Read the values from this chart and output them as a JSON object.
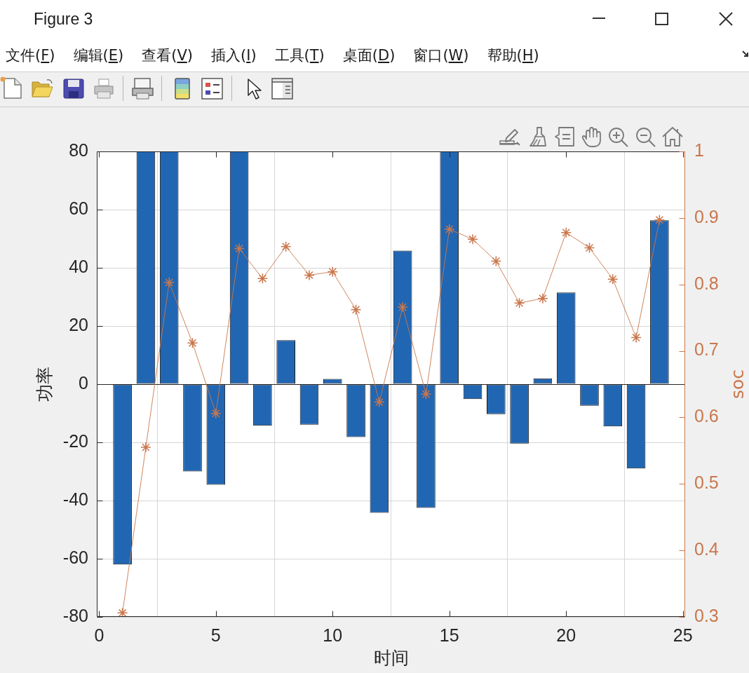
{
  "chart_data": {
    "type": "bar",
    "title": "Figure 3",
    "annotations": [
      "文件(F)",
      "编辑(E)",
      "查看(V)",
      "插入(I)",
      "工具(T)",
      "桌面(D)",
      "窗口(W)",
      "帮助(H)"
    ],
    "xlabel": "时间",
    "ylabel": "功率",
    "y2label": "soc",
    "x": [
      1,
      2,
      3,
      4,
      5,
      6,
      7,
      8,
      9,
      10,
      11,
      12,
      13,
      14,
      15,
      16,
      17,
      18,
      19,
      20,
      21,
      22,
      23,
      24
    ],
    "series": [
      {
        "color": "#2166b2",
        "values": [
          -62,
          80,
          80,
          -30,
          -34.6,
          80,
          -14.3,
          15.1,
          -13.9,
          1.8,
          -18.2,
          -44.2,
          45.9,
          -42.5,
          80,
          -5.1,
          -10.3,
          -20.4,
          2,
          31.5,
          -7.4,
          -14.5,
          -29,
          56.3
        ]
      },
      {
        "type": "line",
        "axis": "y2",
        "color": "#c9774c",
        "marker": "cross",
        "values": [
          0.306,
          0.555,
          0.803,
          0.712,
          0.606,
          0.854,
          0.809,
          0.857,
          0.814,
          0.819,
          0.762,
          0.623,
          0.766,
          0.635,
          0.883,
          0.868,
          0.835,
          0.772,
          0.779,
          0.878,
          0.855,
          0.808,
          0.72,
          0.897
        ]
      }
    ],
    "xlim": [
      -0.1,
      25.1
    ],
    "xticks": [
      0,
      5,
      10,
      15,
      20,
      25
    ],
    "ylim": [
      -80,
      80
    ],
    "yticks": [
      -80,
      -60,
      -40,
      -20,
      0,
      20,
      40,
      60,
      80
    ],
    "y2lim": [
      0.3,
      1
    ],
    "y2ticks": [
      0.3,
      0.4,
      0.5,
      0.6,
      0.7,
      0.8,
      0.9,
      1
    ],
    "grid": true
  }
}
